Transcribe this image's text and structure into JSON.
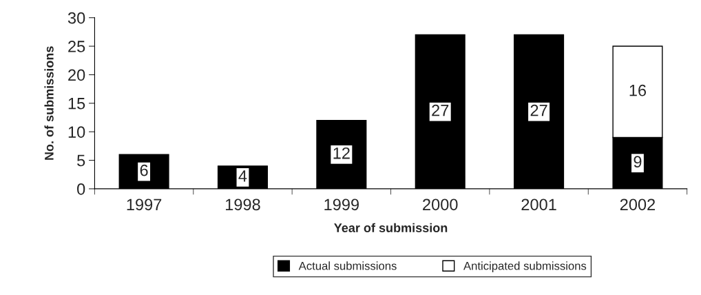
{
  "chart_data": {
    "type": "bar",
    "stacked": true,
    "xlabel": "Year of submission",
    "ylabel": "No. of submissions",
    "categories": [
      "1997",
      "1998",
      "1999",
      "2000",
      "2001",
      "2002"
    ],
    "series": [
      {
        "name": "Actual submissions",
        "color": "#000000",
        "values": [
          6,
          4,
          12,
          27,
          27,
          9
        ]
      },
      {
        "name": "Anticipated submissions",
        "color": "#ffffff",
        "values": [
          null,
          null,
          null,
          null,
          null,
          16
        ]
      }
    ],
    "ylim": [
      0,
      30
    ],
    "yticks": [
      0,
      5,
      10,
      15,
      20,
      25,
      30
    ],
    "data_labels": true,
    "grid": false,
    "legend": "bottom"
  }
}
